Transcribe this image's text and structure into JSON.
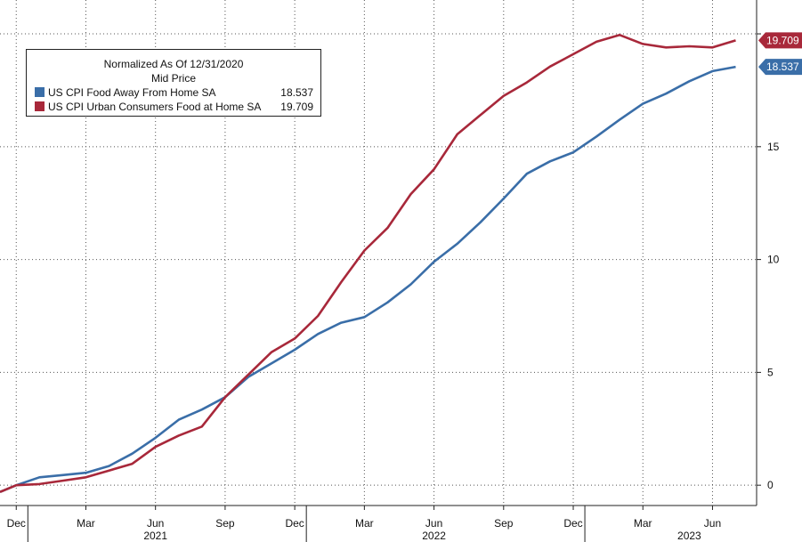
{
  "chart_data": {
    "type": "line",
    "title": "Normalized As Of 12/31/2020",
    "subtitle": "Mid Price",
    "xlabel": "",
    "ylabel": "",
    "ylim": [
      -0.9,
      21.5
    ],
    "y_ticks": [
      0,
      5,
      10,
      15
    ],
    "y_tick_labels": [
      "0",
      "5",
      "10",
      "15"
    ],
    "x_tick_labels": [
      "Dec",
      "Mar",
      "Jun",
      "Sep",
      "Dec",
      "Mar",
      "Jun",
      "Sep",
      "Dec",
      "Mar",
      "Jun"
    ],
    "x_tick_months": [
      0,
      3,
      6,
      9,
      12,
      15,
      18,
      21,
      24,
      27,
      30
    ],
    "year_labels": [
      {
        "label": "2021",
        "month": 6
      },
      {
        "label": "2022",
        "month": 18
      },
      {
        "label": "2023",
        "month": 29
      }
    ],
    "year_separators": [
      0.5,
      12.5,
      24.5
    ],
    "x_domain": [
      -0.7,
      31.9
    ],
    "grid": true,
    "legend_position": "top-left",
    "series": [
      {
        "name": "US CPI Food Away From Home SA",
        "color": "#3a6ea8",
        "last_value_label": "18.537",
        "x": [
          -0.7,
          0,
          1,
          2,
          3,
          4,
          5,
          6,
          7,
          8,
          9,
          10,
          11,
          12,
          13,
          14,
          15,
          16,
          17,
          18,
          19,
          20,
          21,
          22,
          23,
          24,
          25,
          26,
          27,
          28,
          29,
          30,
          31
        ],
        "values": [
          -0.3,
          0.0,
          0.35,
          0.45,
          0.55,
          0.85,
          1.4,
          2.1,
          2.9,
          3.35,
          3.9,
          4.8,
          5.4,
          6.0,
          6.7,
          7.2,
          7.45,
          8.1,
          8.9,
          9.9,
          10.7,
          11.65,
          12.7,
          13.8,
          14.35,
          14.75,
          15.45,
          16.2,
          16.9,
          17.35,
          17.9,
          18.35,
          18.537
        ]
      },
      {
        "name": "US CPI Urban Consumers Food at Home SA",
        "color": "#a8283a",
        "last_value_label": "19.709",
        "x": [
          -0.7,
          0,
          1,
          2,
          3,
          4,
          5,
          6,
          7,
          8,
          9,
          10,
          11,
          12,
          13,
          14,
          15,
          16,
          17,
          18,
          19,
          20,
          21,
          22,
          23,
          24,
          25,
          26,
          27,
          28,
          29,
          30,
          31
        ],
        "values": [
          -0.3,
          0.0,
          0.05,
          0.2,
          0.35,
          0.65,
          0.95,
          1.7,
          2.2,
          2.6,
          3.9,
          4.9,
          5.9,
          6.5,
          7.5,
          9.0,
          10.4,
          11.4,
          12.9,
          14.0,
          15.55,
          16.4,
          17.25,
          17.85,
          18.55,
          19.1,
          19.65,
          19.95,
          19.55,
          19.4,
          19.45,
          19.4,
          19.709
        ]
      }
    ]
  }
}
